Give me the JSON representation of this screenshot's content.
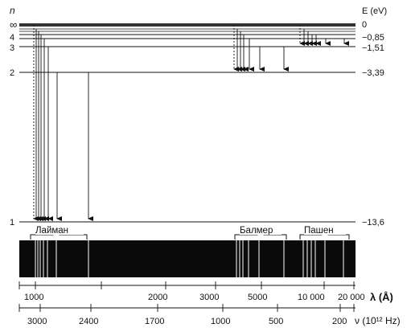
{
  "axes": {
    "n_label": "n",
    "energy_label": "E (eV)",
    "wavelength_label": "λ (Å)",
    "frequency_label": "ν (10¹² Hz)"
  },
  "levels": [
    {
      "n": "∞",
      "energy": "0"
    },
    {
      "n": "4",
      "energy": "−0,85"
    },
    {
      "n": "3",
      "energy": "−1,51"
    },
    {
      "n": "2",
      "energy": "−3,39"
    },
    {
      "n": "1",
      "energy": "−13,6"
    }
  ],
  "series": [
    {
      "name": "Лайман"
    },
    {
      "name": "Балмер"
    },
    {
      "name": "Пашен"
    }
  ],
  "wavelength_ticks": [
    "1000",
    "2000",
    "3000",
    "5000",
    "10 000",
    "20 000"
  ],
  "frequency_ticks": [
    "3000",
    "2400",
    "1700",
    "1000",
    "500",
    "200"
  ]
}
